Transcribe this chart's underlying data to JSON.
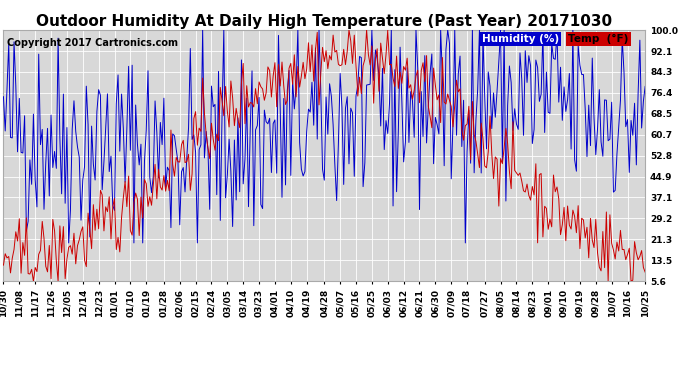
{
  "title": "Outdoor Humidity At Daily High Temperature (Past Year) 20171030",
  "copyright": "Copyright 2017 Cartronics.com",
  "legend_humidity": "Humidity (%)",
  "legend_temp": "Temp  (°F)",
  "humidity_color": "#0000cc",
  "temp_color": "#cc0000",
  "background_color": "#ffffff",
  "plot_bg_color": "#d8d8d8",
  "grid_color": "#ffffff",
  "yticks": [
    5.6,
    13.5,
    21.3,
    29.2,
    37.1,
    44.9,
    52.8,
    60.7,
    68.5,
    76.4,
    84.3,
    92.1,
    100.0
  ],
  "ylim": [
    5.6,
    100.0
  ],
  "xtick_labels": [
    "10/30",
    "11/08",
    "11/17",
    "11/26",
    "12/05",
    "12/14",
    "12/23",
    "01/01",
    "01/10",
    "01/19",
    "01/28",
    "02/06",
    "02/15",
    "02/24",
    "03/05",
    "03/14",
    "03/23",
    "04/01",
    "04/10",
    "04/19",
    "04/28",
    "05/07",
    "05/16",
    "05/25",
    "06/03",
    "06/12",
    "06/21",
    "06/30",
    "07/09",
    "07/18",
    "07/27",
    "08/05",
    "08/14",
    "08/23",
    "09/01",
    "09/10",
    "09/19",
    "09/28",
    "10/07",
    "10/16",
    "10/25"
  ],
  "num_points": 365,
  "title_fontsize": 11,
  "copyright_fontsize": 7,
  "tick_fontsize": 6.5,
  "legend_fontsize": 7.5
}
